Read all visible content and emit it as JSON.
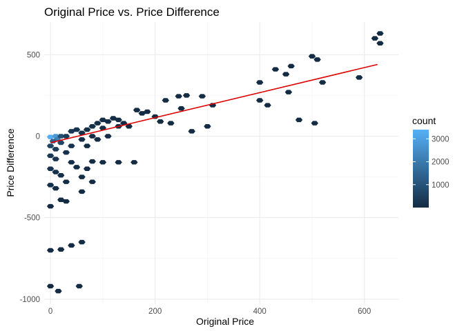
{
  "chart_data": {
    "type": "scatter",
    "subtype": "hexbin",
    "title": "Original Price vs. Price Difference",
    "xlabel": "Original Price",
    "ylabel": "Price Difference",
    "xlim": [
      -12,
      665
    ],
    "ylim": [
      -1030,
      700
    ],
    "x_ticks": [
      0,
      200,
      400,
      600
    ],
    "y_ticks": [
      -1000,
      -500,
      0,
      500
    ],
    "x_tick_labels": [
      "0",
      "200",
      "400",
      "600"
    ],
    "y_tick_labels": [
      "-1000",
      "-500",
      "0",
      "500"
    ],
    "grid": true,
    "legend": {
      "title": "count",
      "placement": "right",
      "ticks": [
        1000,
        2000,
        3000
      ],
      "tick_labels": [
        "1000",
        "2000",
        "3000"
      ],
      "range": [
        1,
        3400
      ],
      "low_color": "#132B43",
      "high_color": "#56B1F7"
    },
    "trend_line": {
      "color": "#dd0000",
      "from": [
        0,
        -40
      ],
      "to": [
        625,
        440
      ]
    },
    "points": [
      {
        "x": 0,
        "y": -5,
        "count": 3300
      },
      {
        "x": 10,
        "y": 0,
        "count": 2800
      },
      {
        "x": 13,
        "y": -20,
        "count": 2100
      },
      {
        "x": 5,
        "y": -30,
        "count": 1400
      },
      {
        "x": 20,
        "y": 0,
        "count": 900
      },
      {
        "x": 20,
        "y": -40,
        "count": 700
      },
      {
        "x": 30,
        "y": 0,
        "count": 400
      },
      {
        "x": 0,
        "y": -60,
        "count": 600
      },
      {
        "x": 10,
        "y": -80,
        "count": 400
      },
      {
        "x": 0,
        "y": -120,
        "count": 300
      },
      {
        "x": 10,
        "y": -140,
        "count": 200
      },
      {
        "x": 0,
        "y": -200,
        "count": 200
      },
      {
        "x": 10,
        "y": -220,
        "count": 150
      },
      {
        "x": 20,
        "y": -240,
        "count": 100
      },
      {
        "x": 0,
        "y": -300,
        "count": 100
      },
      {
        "x": 10,
        "y": -320,
        "count": 80
      },
      {
        "x": 30,
        "y": -280,
        "count": 60
      },
      {
        "x": 40,
        "y": 30,
        "count": 300
      },
      {
        "x": 40,
        "y": -60,
        "count": 200
      },
      {
        "x": 50,
        "y": 40,
        "count": 200
      },
      {
        "x": 60,
        "y": 20,
        "count": 150
      },
      {
        "x": 30,
        "y": -100,
        "count": 150
      },
      {
        "x": 40,
        "y": -160,
        "count": 80
      },
      {
        "x": 50,
        "y": -190,
        "count": 60
      },
      {
        "x": 60,
        "y": -250,
        "count": 40
      },
      {
        "x": 70,
        "y": -60,
        "count": 60
      },
      {
        "x": 70,
        "y": 40,
        "count": 120
      },
      {
        "x": 80,
        "y": 60,
        "count": 100
      },
      {
        "x": 90,
        "y": 80,
        "count": 90
      },
      {
        "x": 100,
        "y": 100,
        "count": 80
      },
      {
        "x": 100,
        "y": 50,
        "count": 70
      },
      {
        "x": 110,
        "y": 90,
        "count": 60
      },
      {
        "x": 120,
        "y": 110,
        "count": 50
      },
      {
        "x": 130,
        "y": 60,
        "count": 40
      },
      {
        "x": 80,
        "y": 0,
        "count": 60
      },
      {
        "x": 90,
        "y": -20,
        "count": 40
      },
      {
        "x": 60,
        "y": -20,
        "count": 80
      },
      {
        "x": 110,
        "y": 0,
        "count": 30
      },
      {
        "x": 130,
        "y": 100,
        "count": 30
      },
      {
        "x": 140,
        "y": 80,
        "count": 25
      },
      {
        "x": 150,
        "y": 60,
        "count": 20
      },
      {
        "x": 165,
        "y": 160,
        "count": 20
      },
      {
        "x": 175,
        "y": 140,
        "count": 15
      },
      {
        "x": 185,
        "y": 150,
        "count": 10
      },
      {
        "x": 200,
        "y": 120,
        "count": 10
      },
      {
        "x": 210,
        "y": 90,
        "count": 8
      },
      {
        "x": 230,
        "y": 80,
        "count": 6
      },
      {
        "x": 220,
        "y": 220,
        "count": 10
      },
      {
        "x": 245,
        "y": 245,
        "count": 10
      },
      {
        "x": 260,
        "y": 250,
        "count": 6
      },
      {
        "x": 290,
        "y": 245,
        "count": 6
      },
      {
        "x": 270,
        "y": 30,
        "count": 6
      },
      {
        "x": 300,
        "y": 60,
        "count": 6
      },
      {
        "x": 310,
        "y": 190,
        "count": 6
      },
      {
        "x": 250,
        "y": 170,
        "count": 6
      },
      {
        "x": 160,
        "y": -160,
        "count": 6
      },
      {
        "x": 100,
        "y": -160,
        "count": 10
      },
      {
        "x": 80,
        "y": -155,
        "count": 10
      },
      {
        "x": 130,
        "y": -160,
        "count": 6
      },
      {
        "x": 70,
        "y": -200,
        "count": 6
      },
      {
        "x": 60,
        "y": -340,
        "count": 6
      },
      {
        "x": 20,
        "y": -390,
        "count": 10
      },
      {
        "x": 0,
        "y": -430,
        "count": 10
      },
      {
        "x": 30,
        "y": -400,
        "count": 6
      },
      {
        "x": 80,
        "y": -280,
        "count": 8
      },
      {
        "x": 0,
        "y": -700,
        "count": 8
      },
      {
        "x": 20,
        "y": -695,
        "count": 6
      },
      {
        "x": 40,
        "y": -670,
        "count": 8
      },
      {
        "x": 60,
        "y": -650,
        "count": 6
      },
      {
        "x": 0,
        "y": -920,
        "count": 8
      },
      {
        "x": 15,
        "y": -950,
        "count": 6
      },
      {
        "x": 55,
        "y": -920,
        "count": 6
      },
      {
        "x": 400,
        "y": 330,
        "count": 6
      },
      {
        "x": 400,
        "y": 220,
        "count": 6
      },
      {
        "x": 415,
        "y": 190,
        "count": 6
      },
      {
        "x": 430,
        "y": 410,
        "count": 6
      },
      {
        "x": 450,
        "y": 380,
        "count": 6
      },
      {
        "x": 460,
        "y": 430,
        "count": 6
      },
      {
        "x": 455,
        "y": 270,
        "count": 6
      },
      {
        "x": 475,
        "y": 100,
        "count": 6
      },
      {
        "x": 505,
        "y": 80,
        "count": 6
      },
      {
        "x": 500,
        "y": 490,
        "count": 6
      },
      {
        "x": 510,
        "y": 470,
        "count": 6
      },
      {
        "x": 520,
        "y": 330,
        "count": 6
      },
      {
        "x": 590,
        "y": 360,
        "count": 6
      },
      {
        "x": 620,
        "y": 600,
        "count": 6
      },
      {
        "x": 630,
        "y": 630,
        "count": 6
      },
      {
        "x": 630,
        "y": 570,
        "count": 6
      }
    ]
  }
}
